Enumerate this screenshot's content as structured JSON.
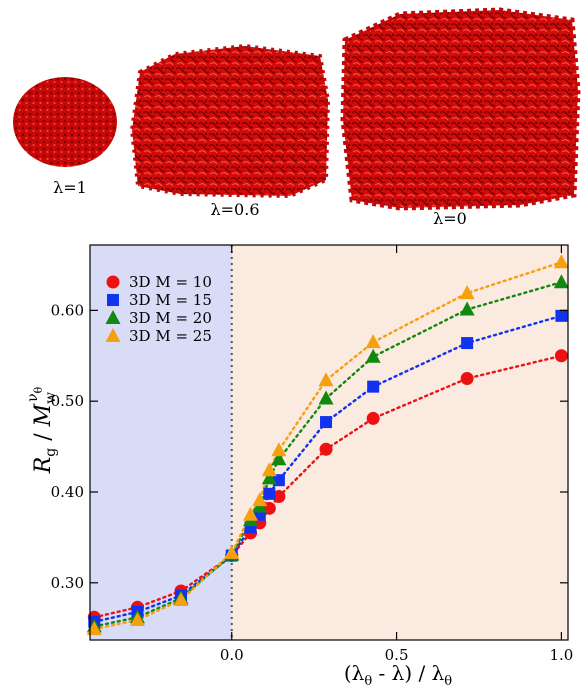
{
  "images": [
    {
      "label": "λ=1",
      "lambda": 1
    },
    {
      "label": "λ=0.6",
      "lambda": 0.6
    },
    {
      "label": "λ=0",
      "lambda": 0
    }
  ],
  "colors": {
    "blob": "#d40b0b",
    "region_left": "#d9dcf7",
    "region_right": "#fbeae0"
  },
  "chart_data": {
    "type": "scatter",
    "xlabel": "(λθ - λ) / λθ",
    "ylabel": "Rg / Mw^νθ",
    "xlim": [
      -0.43,
      1.02
    ],
    "ylim": [
      0.237,
      0.672
    ],
    "xticks": [
      0.0,
      0.5,
      1.0
    ],
    "xtick_labels": [
      "0.0",
      "0.5",
      "1.0"
    ],
    "yticks": [
      0.3,
      0.4,
      0.5,
      0.6
    ],
    "ytick_labels": [
      "0.30",
      "0.40",
      "0.50",
      "0.60"
    ],
    "vline_x": 0,
    "legend_position": "top-left",
    "series": [
      {
        "name": "3D M = 10",
        "color": "#ee1111",
        "marker": "circle",
        "x": [
          -0.417,
          -0.286,
          -0.154,
          0.0,
          0.057,
          0.085,
          0.114,
          0.143,
          0.286,
          0.429,
          0.714,
          1.0
        ],
        "y": [
          0.262,
          0.273,
          0.291,
          0.33,
          0.355,
          0.366,
          0.382,
          0.395,
          0.447,
          0.481,
          0.525,
          0.55
        ]
      },
      {
        "name": "3D M = 15",
        "color": "#1133ee",
        "marker": "square",
        "x": [
          -0.417,
          -0.286,
          -0.154,
          0.0,
          0.057,
          0.085,
          0.114,
          0.143,
          0.286,
          0.429,
          0.714,
          1.0
        ],
        "y": [
          0.257,
          0.268,
          0.286,
          0.33,
          0.361,
          0.375,
          0.398,
          0.413,
          0.477,
          0.516,
          0.564,
          0.594
        ]
      },
      {
        "name": "3D M = 20",
        "color": "#11880f",
        "marker": "triangle",
        "x": [
          -0.417,
          -0.286,
          -0.154,
          0.0,
          0.057,
          0.085,
          0.114,
          0.143,
          0.286,
          0.429,
          0.714,
          1.0
        ],
        "y": [
          0.252,
          0.262,
          0.283,
          0.331,
          0.369,
          0.384,
          0.415,
          0.436,
          0.503,
          0.549,
          0.601,
          0.631
        ]
      },
      {
        "name": "3D M = 25",
        "color": "#f5a00f",
        "marker": "triangle",
        "x": [
          -0.417,
          -0.286,
          -0.154,
          0.0,
          0.057,
          0.085,
          0.114,
          0.143,
          0.286,
          0.429,
          0.714,
          1.0
        ],
        "y": [
          0.249,
          0.259,
          0.281,
          0.333,
          0.375,
          0.391,
          0.424,
          0.446,
          0.523,
          0.565,
          0.619,
          0.653
        ]
      }
    ]
  }
}
